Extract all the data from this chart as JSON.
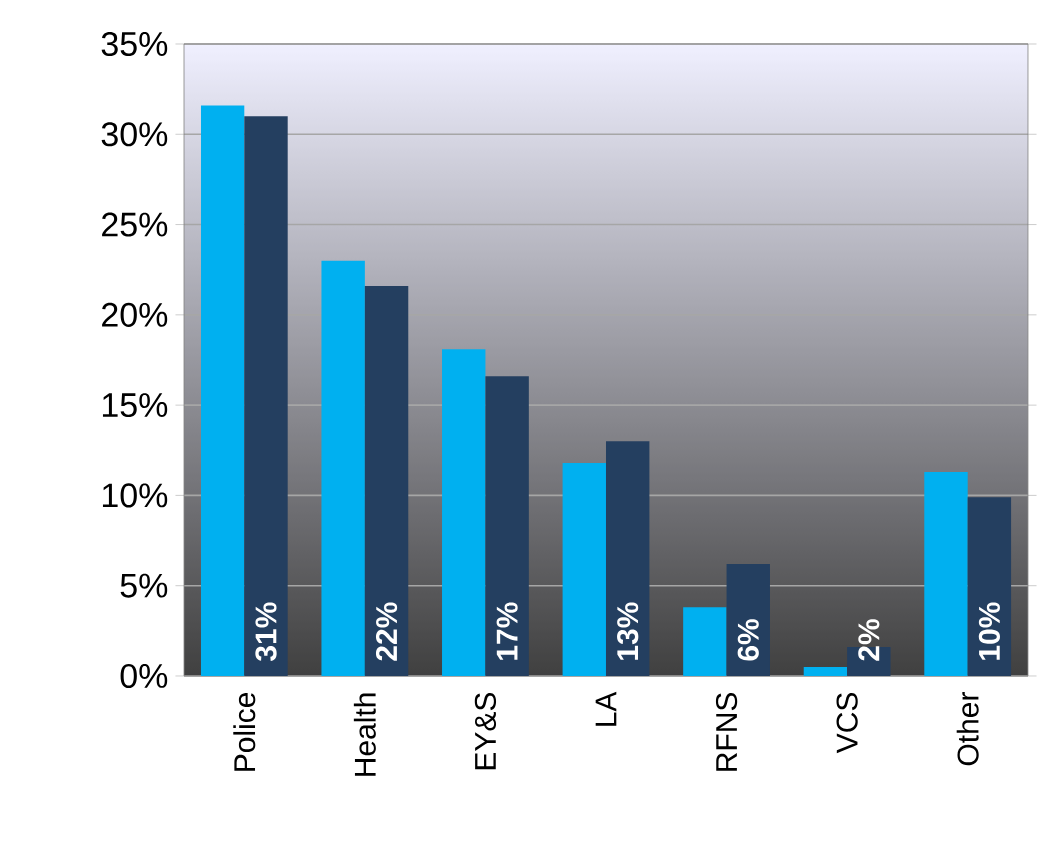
{
  "chart_data": {
    "type": "bar",
    "categories": [
      "Police",
      "Health",
      "EY&S",
      "LA",
      "RFNS",
      "VCS",
      "Other"
    ],
    "series": [
      {
        "color": "#00b0f0",
        "values": [
          31.6,
          23.0,
          18.1,
          11.8,
          3.8,
          0.5,
          11.3
        ]
      },
      {
        "color": "#243f60",
        "values": [
          31,
          21.6,
          16.6,
          13,
          6.2,
          1.6,
          9.9
        ],
        "value_labels": [
          "31%",
          "22%",
          "17%",
          "13%",
          "6%",
          "2%",
          "10%"
        ]
      }
    ],
    "ylim": [
      0,
      35
    ],
    "yticks": [
      {
        "value": 0,
        "label": "0%"
      },
      {
        "value": 5,
        "label": "5%"
      },
      {
        "value": 10,
        "label": "10%"
      },
      {
        "value": 15,
        "label": "15%"
      },
      {
        "value": 20,
        "label": "20%"
      },
      {
        "value": 25,
        "label": "25%"
      },
      {
        "value": 30,
        "label": "30%"
      },
      {
        "value": 35,
        "label": "35%"
      }
    ],
    "grid": "y"
  }
}
